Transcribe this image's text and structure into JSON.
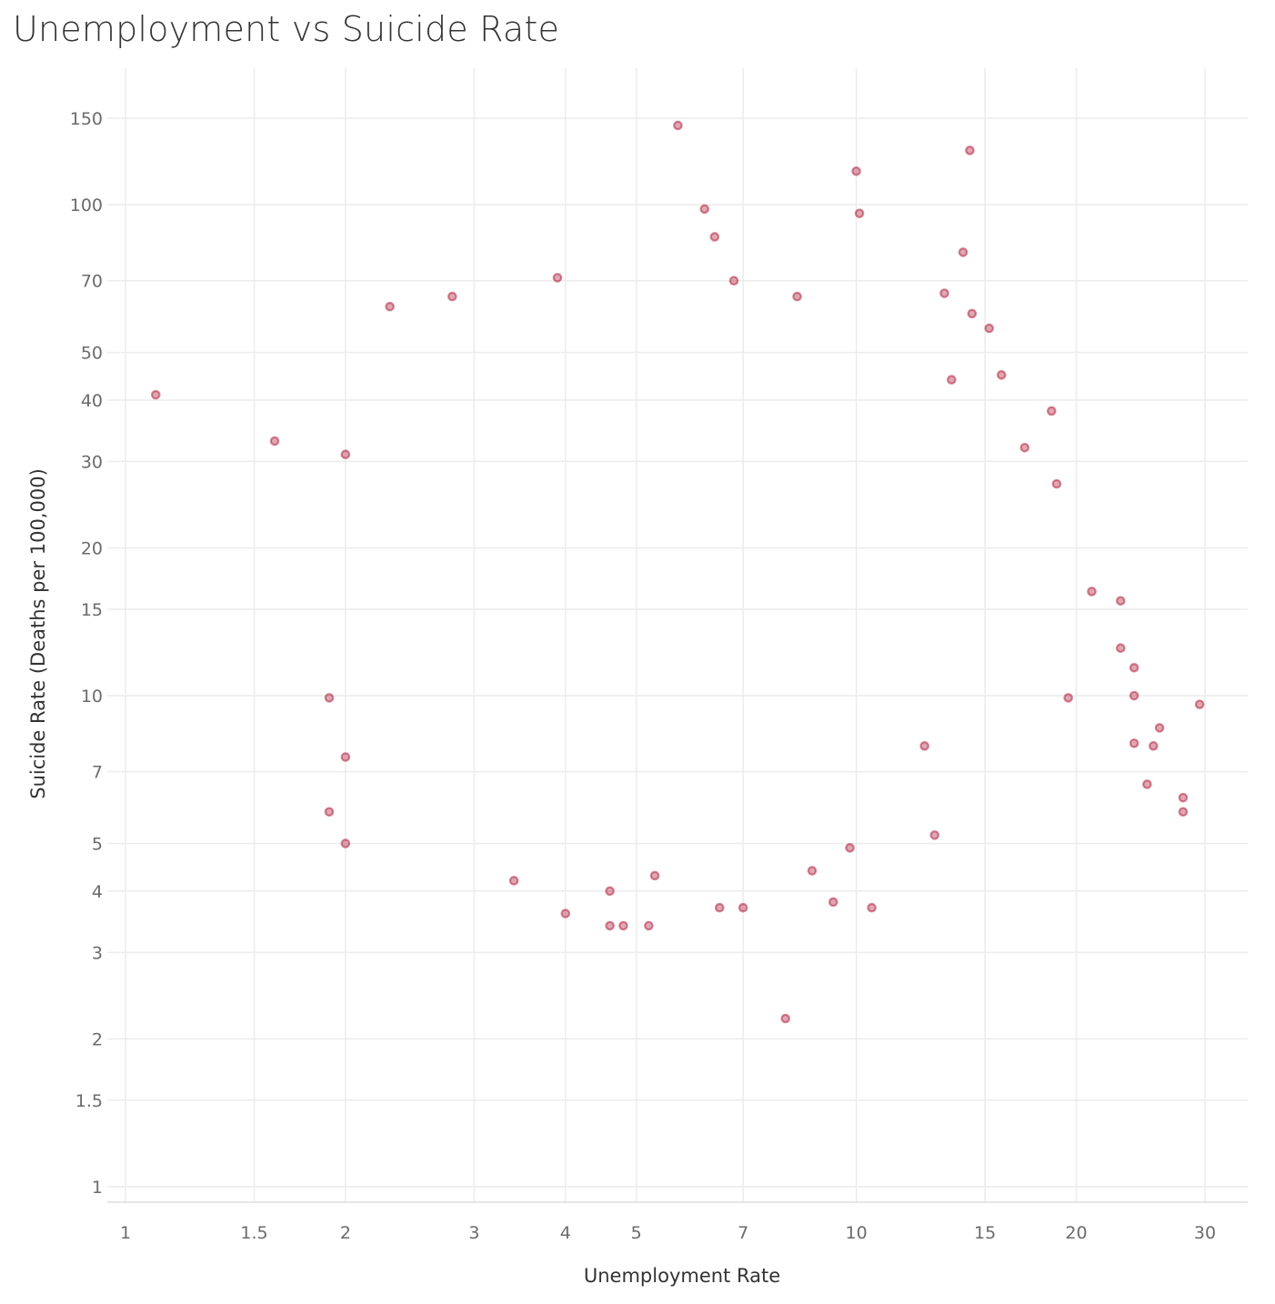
{
  "chart_data": {
    "type": "scatter",
    "title": "Unemployment vs Suicide Rate",
    "xlabel": "Unemployment Rate",
    "ylabel": "Suicide Rate (Deaths per 100,000)",
    "x_scale": "log",
    "y_scale": "log",
    "xlim": [
      0.95,
      34
    ],
    "ylim": [
      0.93,
      185
    ],
    "x_ticks": [
      "1",
      "1.5",
      "2",
      "3",
      "4",
      "5",
      "7",
      "10",
      "15",
      "20",
      "30"
    ],
    "y_ticks": [
      "1",
      "1.5",
      "2",
      "3",
      "4",
      "5",
      "7",
      "10",
      "15",
      "20",
      "30",
      "40",
      "50",
      "70",
      "100",
      "150"
    ],
    "grid": true,
    "marker_color": "#a50021",
    "series": [
      {
        "points": [
          [
            1.1,
            41
          ],
          [
            1.6,
            33
          ],
          [
            2.0,
            31
          ],
          [
            1.9,
            9.9
          ],
          [
            1.9,
            5.8
          ],
          [
            2.0,
            5.0
          ],
          [
            2.0,
            7.5
          ],
          [
            5.7,
            145
          ],
          [
            14.3,
            129
          ],
          [
            10.0,
            117
          ],
          [
            10.1,
            96
          ],
          [
            6.2,
            98
          ],
          [
            6.4,
            86
          ],
          [
            14.0,
            80
          ],
          [
            3.9,
            71
          ],
          [
            6.8,
            70
          ],
          [
            2.8,
            65
          ],
          [
            2.3,
            62
          ],
          [
            8.3,
            65
          ],
          [
            13.2,
            66
          ],
          [
            8.0,
            2.2
          ],
          [
            4.0,
            3.6
          ],
          [
            4.6,
            3.4
          ],
          [
            5.2,
            3.4
          ],
          [
            4.8,
            3.4
          ],
          [
            6.5,
            3.7
          ],
          [
            7.0,
            3.7
          ],
          [
            9.3,
            3.8
          ],
          [
            10.5,
            3.7
          ],
          [
            28.0,
            6.2
          ],
          [
            28.0,
            5.8
          ],
          [
            29.5,
            9.6
          ],
          [
            26.0,
            8.6
          ],
          [
            25.5,
            7.9
          ],
          [
            24.0,
            8.0
          ],
          [
            25.0,
            6.6
          ],
          [
            24.0,
            10.0
          ],
          [
            24.0,
            11.4
          ],
          [
            23.0,
            12.5
          ],
          [
            23.0,
            15.6
          ],
          [
            21.0,
            16.3
          ],
          [
            19.5,
            9.9
          ],
          [
            18.8,
            27.0
          ],
          [
            18.5,
            38.0
          ],
          [
            17.0,
            32.0
          ],
          [
            15.8,
            45.0
          ],
          [
            15.2,
            56.0
          ],
          [
            14.4,
            60.0
          ],
          [
            13.5,
            44.0
          ],
          [
            12.4,
            7.9
          ],
          [
            12.8,
            5.2
          ],
          [
            8.7,
            4.4
          ],
          [
            9.8,
            4.9
          ],
          [
            5.3,
            4.3
          ],
          [
            4.6,
            4.0
          ],
          [
            3.4,
            4.2
          ]
        ]
      }
    ]
  }
}
